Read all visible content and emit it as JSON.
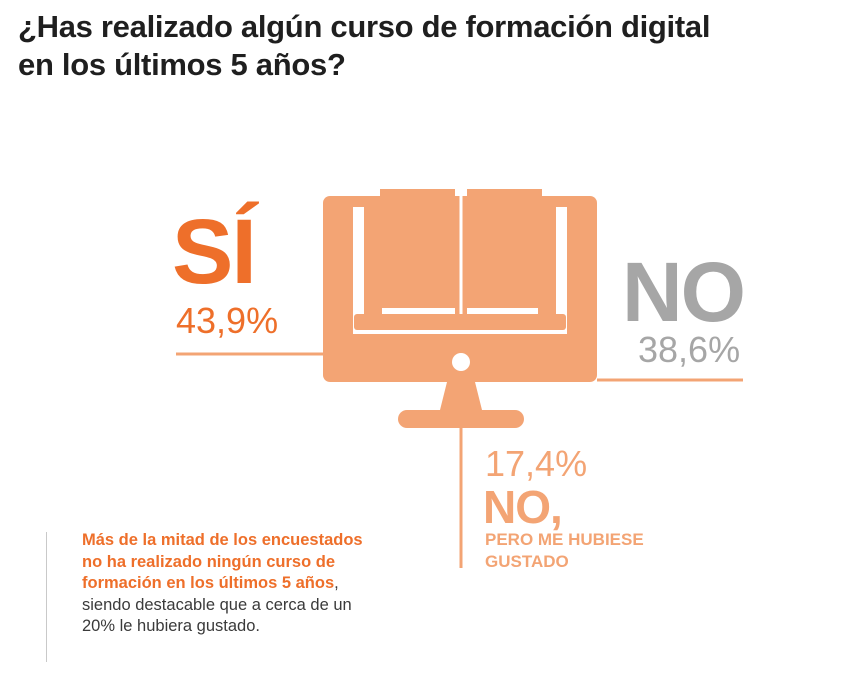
{
  "title": "¿Has realizado algún curso de formación digital en los últimos 5 años?",
  "colors": {
    "accent": "#ee6f2a",
    "monitor": "#f3a474",
    "no": "#a6a6a6",
    "text": "#1f1f1f",
    "caption_text": "#3a3a3a"
  },
  "icons": [
    "monitor-icon",
    "open-book-icon"
  ],
  "chart_data": {
    "type": "infographic",
    "title": "¿Has realizado algún curso de formación digital en los últimos 5 años?",
    "categories": [
      "SÍ",
      "NO",
      "NO, PERO ME HUBIESE GUSTADO"
    ],
    "values": [
      43.9,
      38.6,
      17.4
    ],
    "unit": "%",
    "series": [
      {
        "label": "SÍ",
        "sublabel": "",
        "value": 43.9,
        "value_text": "43,9%"
      },
      {
        "label": "NO",
        "sublabel": "",
        "value": 38.6,
        "value_text": "38,6%"
      },
      {
        "label": "NO,",
        "sublabel": "PERO ME HUBIESE GUSTADO",
        "sublabel_line1": "PERO ME HUBIESE",
        "sublabel_line2": "GUSTADO",
        "value": 17.4,
        "value_text": "17,4%"
      }
    ]
  },
  "caption": {
    "highlight": "Más de la mitad de los encuestados no ha realizado ningún curso de formación en los últimos 5 años",
    "rest": ", siendo destacable que a cerca de un 20% le hubiera gustado."
  }
}
